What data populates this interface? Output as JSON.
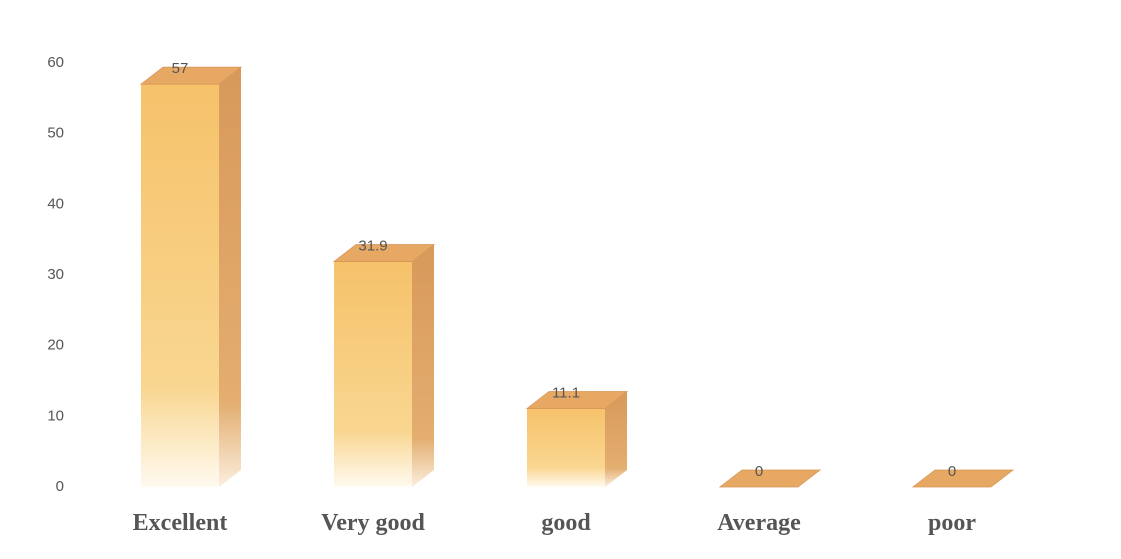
{
  "chart_data": {
    "type": "bar",
    "categories": [
      "Excellent",
      "Very good",
      "good",
      "Average",
      "poor"
    ],
    "values": [
      57,
      31.9,
      11.1,
      0,
      0
    ],
    "color": "#f5c26b",
    "ylim": [
      0,
      60
    ],
    "yticks": [
      0,
      10,
      20,
      30,
      40,
      50,
      60
    ],
    "grid": false
  }
}
